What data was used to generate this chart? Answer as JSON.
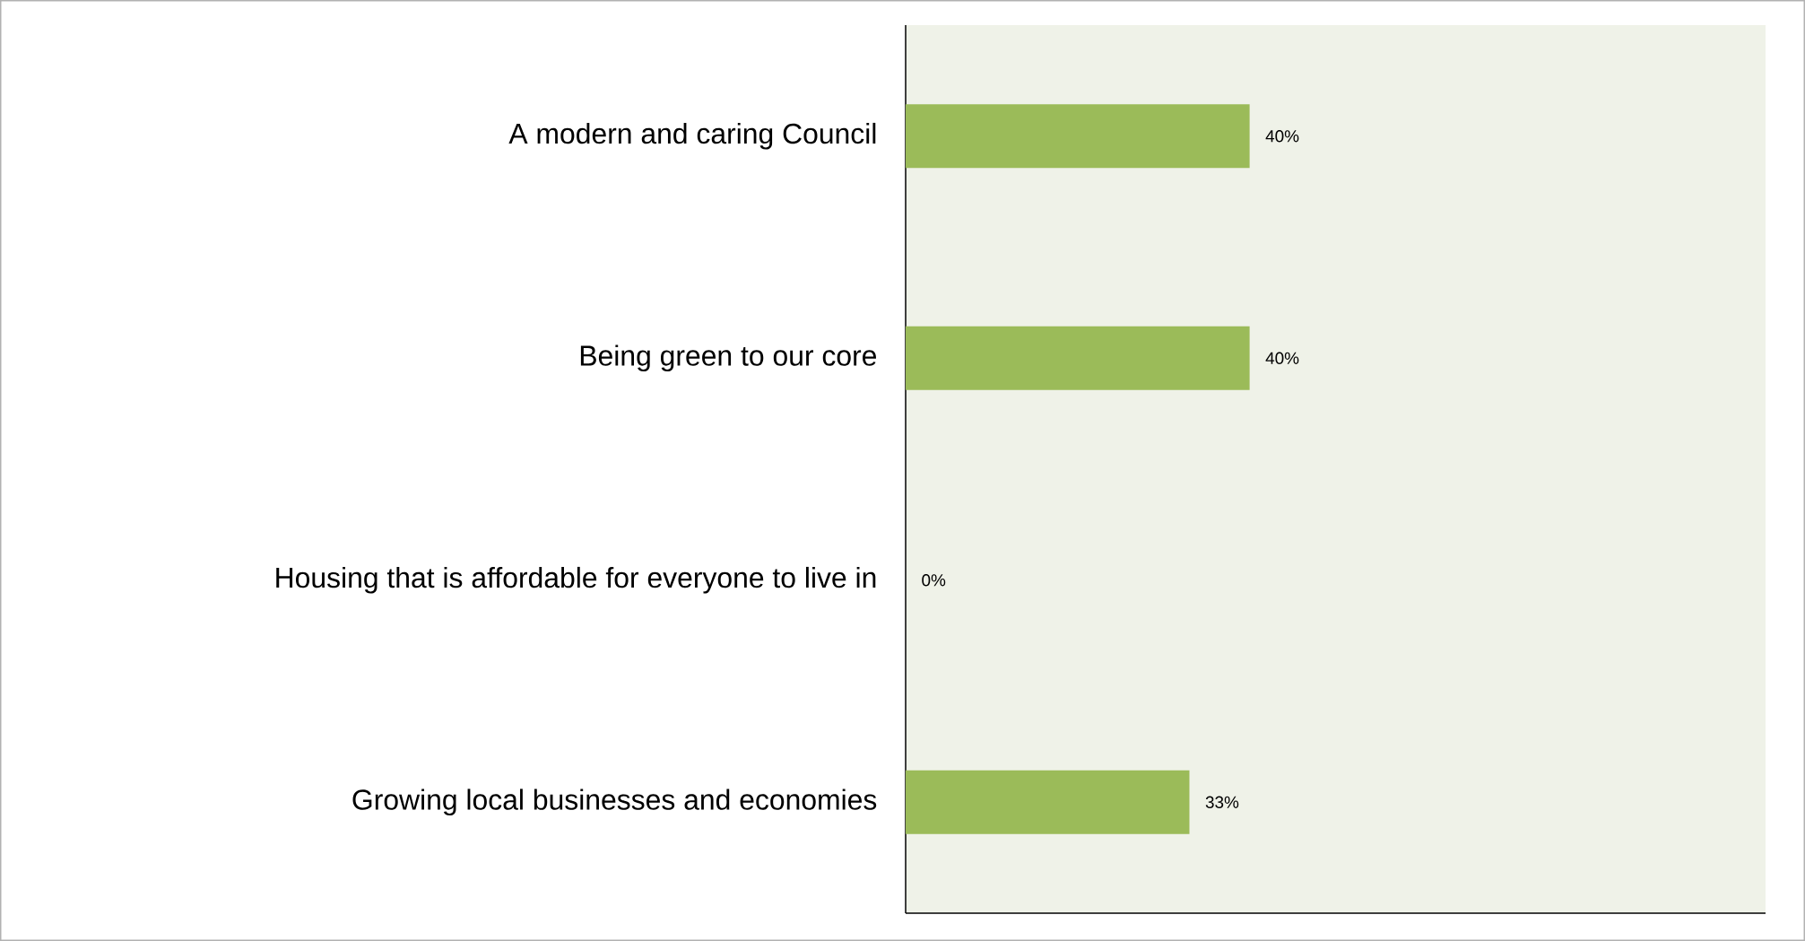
{
  "chart_data": {
    "type": "bar",
    "orientation": "horizontal",
    "categories": [
      "A modern and caring Council",
      "Being green to our core",
      "Housing that is affordable for everyone to live in",
      "Growing local businesses and economies"
    ],
    "values": [
      40,
      40,
      0,
      33
    ],
    "value_labels": [
      "40%",
      "40%",
      "0%",
      "33%"
    ],
    "color": "#9bbb59",
    "xlim": [
      0,
      100
    ]
  }
}
